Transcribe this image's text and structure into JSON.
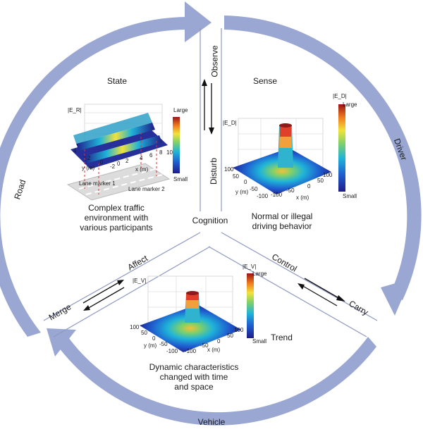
{
  "ring": {
    "road": "Road",
    "driver": "Driver",
    "vehicle": "Vehicle",
    "color": "#9aa7d2"
  },
  "top_band": {
    "observe": "Observe",
    "disturb": "Disturb"
  },
  "right_band": {
    "control": "Control",
    "carry": "Carry"
  },
  "left_band": {
    "affect": "Affect",
    "merge": "Merge"
  },
  "center": {
    "cognition": "Cognition"
  },
  "state_panel": {
    "title": "State",
    "field_label": "|E_R|",
    "colorbar_high": "Large",
    "colorbar_low": "Small",
    "y_axis": "y (m)",
    "x_axis": "x (m)",
    "y_ticks": [
      "4",
      "2",
      "0",
      "-2"
    ],
    "x_ticks": [
      "0",
      "2",
      "4",
      "6",
      "8"
    ],
    "z_tick": "10",
    "lane_marker_1": "Lane marker 1",
    "lane_marker_2": "Lane marker 2",
    "caption": [
      "Complex traffic",
      "environment with",
      "various participants"
    ]
  },
  "sense_panel": {
    "title": "Sense",
    "field_label": "|E_D|",
    "colorbar_high": "Large",
    "colorbar_low": "Small",
    "y_axis": "y (m)",
    "x_axis": "x (m)",
    "y_ticks": [
      "100",
      "50",
      "0",
      "-50",
      "-100"
    ],
    "x_ticks": [
      "-100",
      "-50",
      "0",
      "50",
      "100"
    ],
    "caption": [
      "Normal or illegal",
      "driving behavior"
    ]
  },
  "trend_panel": {
    "title": "Trend",
    "field_label": "|E_V|",
    "colorbar_high": "Large",
    "colorbar_low": "Small",
    "y_axis": "y (m)",
    "x_axis": "x (m)",
    "y_ticks": [
      "100",
      "50",
      "0",
      "-50",
      "-100"
    ],
    "x_ticks": [
      "-100",
      "-50",
      "0",
      "50",
      "100"
    ],
    "caption": [
      "Dynamic characteristics",
      "changed with time",
      "and space"
    ]
  }
}
